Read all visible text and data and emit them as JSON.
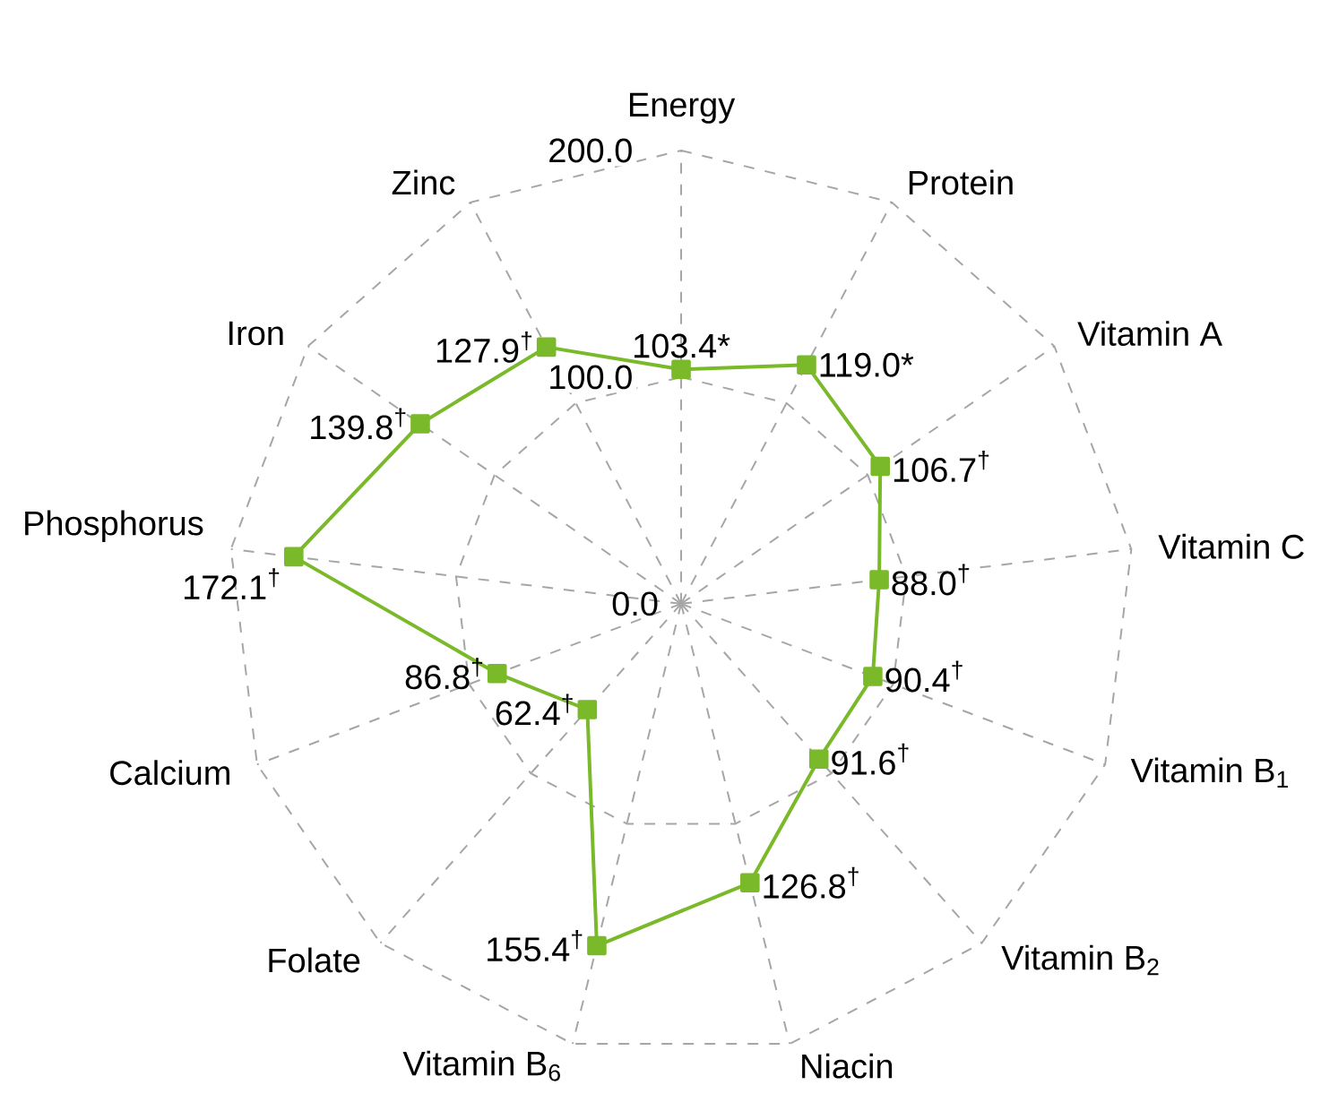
{
  "chart_data": {
    "type": "radar",
    "categories": [
      "Energy",
      "Protein",
      "Vitamin A",
      "Vitamin C",
      "Vitamin B$_{1}$",
      "Vitamin B$_{2}$",
      "Niacin",
      "Vitamin B$_{6}$",
      "Folate",
      "Calcium",
      "Phosphorus",
      "Iron",
      "Zinc"
    ],
    "series": [
      {
        "color": "#7ab929",
        "values": [
          103.4,
          119.0,
          106.7,
          88.0,
          90.4,
          91.6,
          126.8,
          155.4,
          62.4,
          86.8,
          172.1,
          139.8,
          127.9
        ],
        "value_labels": [
          "103.4*",
          "119.0*",
          "106.7$^{†}$",
          "88.0$^{†}$",
          "90.4$^{†}$",
          "91.6$^{†}$",
          "126.8$^{†}$",
          "155.4$^{†}$",
          "62.4$^{†}$",
          "86.8$^{†}$",
          "172.1$^{†}$",
          "139.8$^{†}$",
          "127.9$^{†}$"
        ]
      }
    ],
    "ylim": [
      0,
      200
    ],
    "yticks": [
      {
        "value": 0,
        "label": "0.0"
      },
      {
        "value": 100,
        "label": "100.0"
      },
      {
        "value": 200,
        "label": "200.0"
      }
    ],
    "grid": true,
    "marker": "square"
  }
}
